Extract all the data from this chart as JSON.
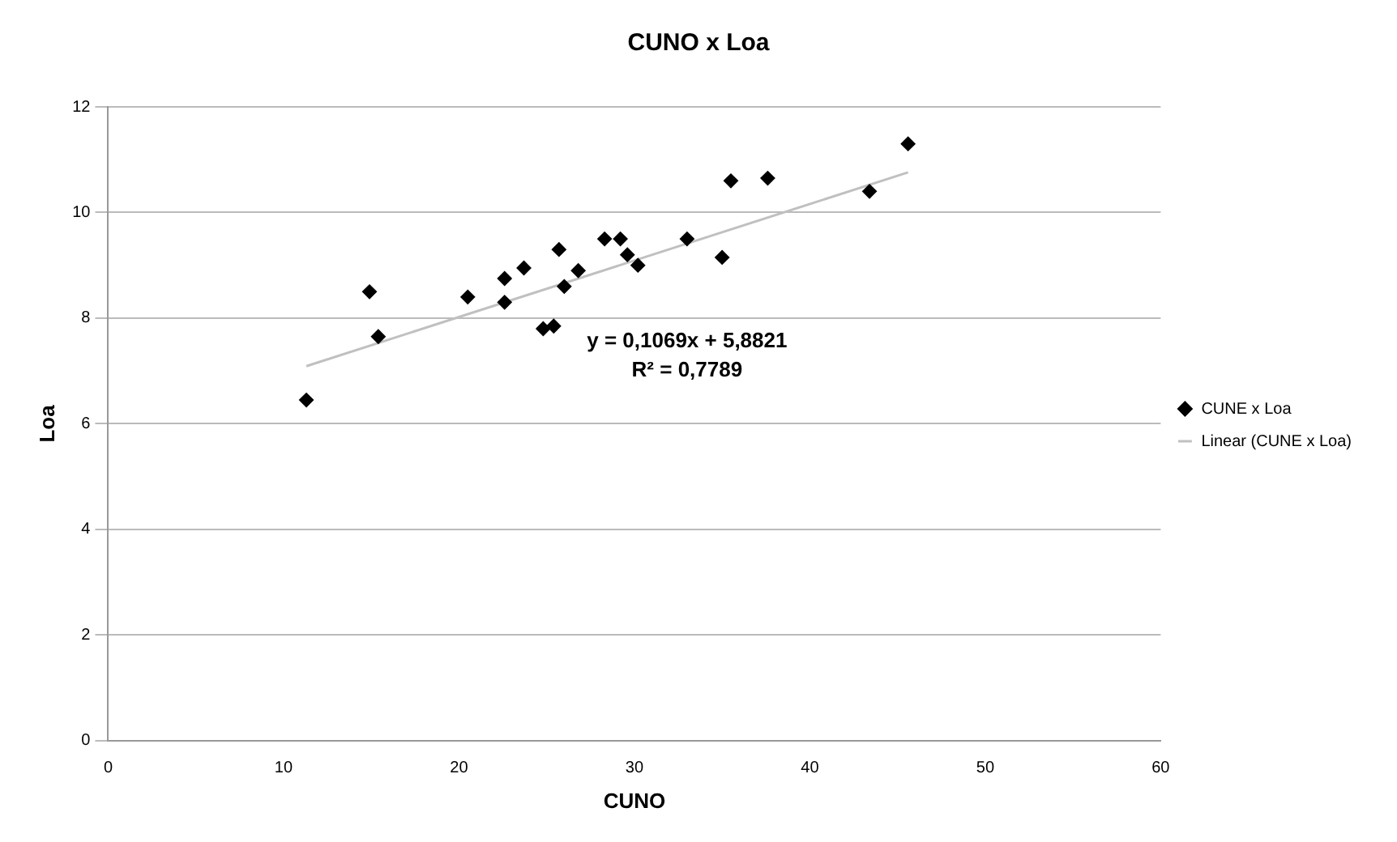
{
  "chart_data": {
    "type": "scatter",
    "title": "CUNO x Loa",
    "xlabel": "CUNO",
    "ylabel": "Loa",
    "series": [
      {
        "name": "CUNE x Loa",
        "type": "scatter",
        "color": "#000000",
        "marker": "diamond",
        "x": [
          11.3,
          14.9,
          15.4,
          20.5,
          22.6,
          22.6,
          23.7,
          24.8,
          25.4,
          25.7,
          26.0,
          26.8,
          28.3,
          29.2,
          29.6,
          30.2,
          33.0,
          35.0,
          35.5,
          37.6,
          43.4,
          45.6
        ],
        "values": [
          6.45,
          8.5,
          7.65,
          8.4,
          8.75,
          8.3,
          8.95,
          7.8,
          7.85,
          9.3,
          8.6,
          8.9,
          9.5,
          9.5,
          9.2,
          9.0,
          9.5,
          9.15,
          10.6,
          10.65,
          10.4,
          11.3
        ]
      },
      {
        "name": "Linear (CUNE x Loa)",
        "type": "line",
        "color": "#c0c0c0",
        "marker": "none",
        "line_style": "solid",
        "x": [
          11.3,
          45.6
        ],
        "values": [
          7.09,
          10.76
        ]
      }
    ],
    "xlim": [
      0,
      60
    ],
    "xticks": [
      0,
      10,
      20,
      30,
      40,
      50,
      60
    ],
    "ylim": [
      0,
      12
    ],
    "yticks": [
      0,
      2,
      4,
      6,
      8,
      10,
      12
    ],
    "grid": "y",
    "legend": "right",
    "annotations": [
      "y = 0,1069x + 5,8821",
      "R² = 0,7789"
    ]
  }
}
